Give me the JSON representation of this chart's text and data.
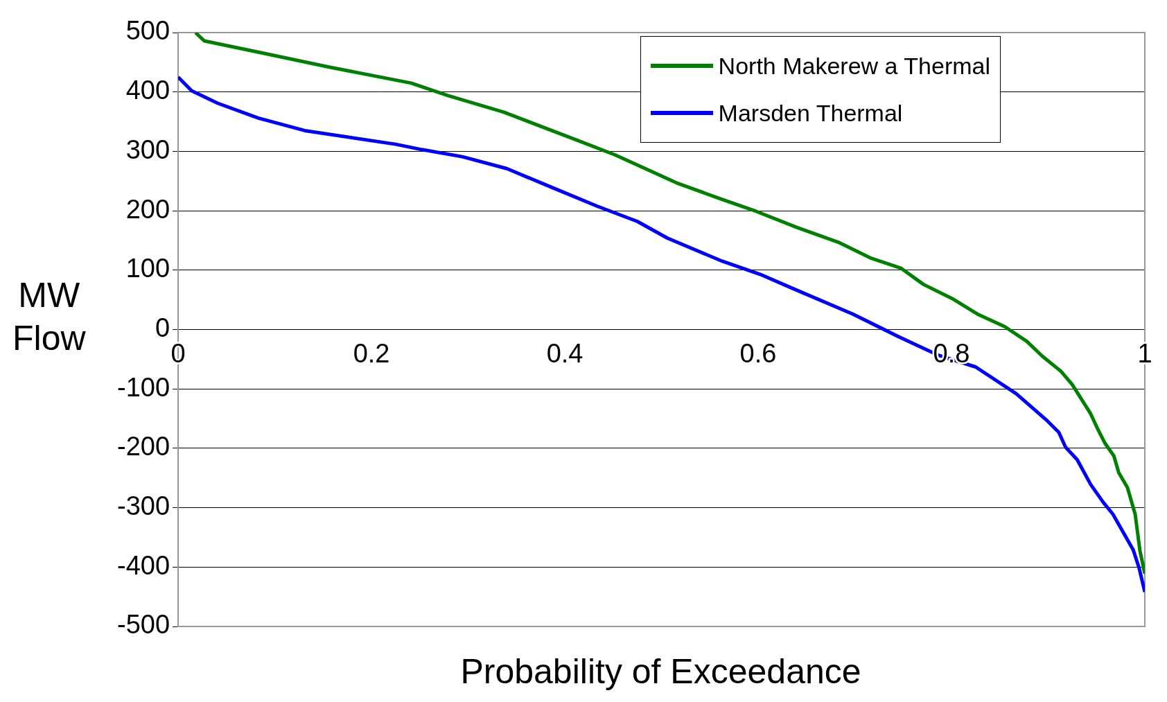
{
  "chart_data": {
    "type": "line",
    "xlabel": "Probability of Exceedance",
    "ylabel": "MW Flow",
    "xlim": [
      0,
      1
    ],
    "ylim": [
      -500,
      500
    ],
    "xticks": [
      0,
      0.2,
      0.4,
      0.6,
      0.8,
      1
    ],
    "yticks": [
      -500,
      -400,
      -300,
      -200,
      -100,
      0,
      100,
      200,
      300,
      400,
      500
    ],
    "grid": "y",
    "legend": "top right",
    "marker": "none",
    "line_style": "solid",
    "series": [
      {
        "name": "North Makerew a Thermal",
        "color": "#008000",
        "x": [
          0.018,
          0.027,
          0.083,
          0.156,
          0.241,
          0.279,
          0.337,
          0.417,
          0.452,
          0.517,
          0.563,
          0.598,
          0.64,
          0.683,
          0.717,
          0.748,
          0.771,
          0.802,
          0.828,
          0.855,
          0.878,
          0.894,
          0.913,
          0.925,
          0.944,
          0.952,
          0.959,
          0.968,
          0.973,
          0.982,
          0.99,
          0.995,
          1.0
        ],
        "values": [
          500,
          486,
          467,
          442,
          415,
          394,
          366,
          316,
          294,
          246,
          219,
          199,
          172,
          147,
          120,
          103,
          76,
          51,
          25,
          5,
          -20,
          -45,
          -70,
          -93,
          -142,
          -170,
          -192,
          -213,
          -241,
          -266,
          -311,
          -373,
          -411
        ]
      },
      {
        "name": "Marsden Thermal",
        "color": "#0000ff",
        "x": [
          0,
          0.014,
          0.041,
          0.083,
          0.131,
          0.225,
          0.252,
          0.294,
          0.34,
          0.387,
          0.433,
          0.475,
          0.506,
          0.563,
          0.602,
          0.636,
          0.698,
          0.744,
          0.786,
          0.825,
          0.867,
          0.898,
          0.911,
          0.918,
          0.93,
          0.944,
          0.957,
          0.967,
          0.988,
          0.994,
          1.0
        ],
        "values": [
          425,
          402,
          381,
          356,
          335,
          312,
          303,
          291,
          271,
          239,
          208,
          182,
          154,
          115,
          93,
          69,
          26,
          -11,
          -43,
          -63,
          -108,
          -152,
          -173,
          -198,
          -219,
          -261,
          -291,
          -311,
          -371,
          -401,
          -442
        ]
      }
    ]
  }
}
